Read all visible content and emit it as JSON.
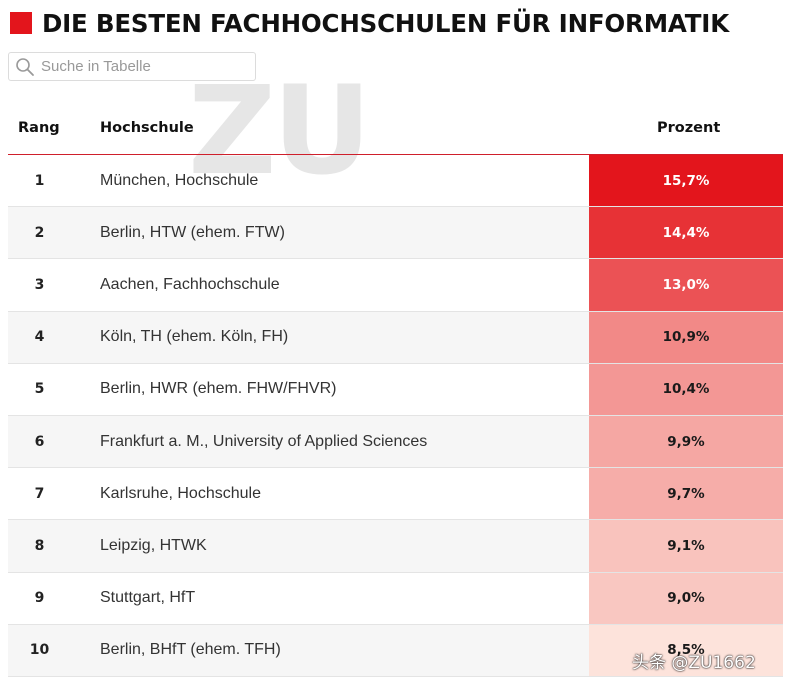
{
  "header": {
    "title": "DIE BESTEN FACHHOCHSCHULEN FÜR INFORMATIK",
    "accent_color": "#e3151c"
  },
  "search": {
    "icon": "search-icon",
    "placeholder": "Suche in Tabelle",
    "value": ""
  },
  "watermark_text": "ZU",
  "credit_text": "头条 @ZU1662",
  "chart_data": {
    "type": "table",
    "title": "DIE BESTEN FACHHOCHSCHULEN FÜR INFORMATIK",
    "columns": [
      "Rang",
      "Hochschule",
      "Prozent"
    ],
    "rows": [
      {
        "rank": "1",
        "name": "München, Hochschule",
        "percent_label": "15,7%",
        "value": 15.7
      },
      {
        "rank": "2",
        "name": "Berlin, HTW (ehem. FTW)",
        "percent_label": "14,4%",
        "value": 14.4
      },
      {
        "rank": "3",
        "name": "Aachen, Fachhochschule",
        "percent_label": "13,0%",
        "value": 13.0
      },
      {
        "rank": "4",
        "name": "Köln, TH (ehem. Köln, FH)",
        "percent_label": "10,9%",
        "value": 10.9
      },
      {
        "rank": "5",
        "name": "Berlin, HWR (ehem. FHW/FHVR)",
        "percent_label": "10,4%",
        "value": 10.4
      },
      {
        "rank": "6",
        "name": "Frankfurt a. M., University of Applied Sciences",
        "percent_label": "9,9%",
        "value": 9.9
      },
      {
        "rank": "7",
        "name": "Karlsruhe, Hochschule",
        "percent_label": "9,7%",
        "value": 9.7
      },
      {
        "rank": "8",
        "name": "Leipzig, HTWK",
        "percent_label": "9,1%",
        "value": 9.1
      },
      {
        "rank": "9",
        "name": "Stuttgart, HfT",
        "percent_label": "9,0%",
        "value": 9.0
      },
      {
        "rank": "10",
        "name": "Berlin, BHfT (ehem. TFH)",
        "percent_label": "8,5%",
        "value": 8.5
      }
    ],
    "color_scale": {
      "high": "#e3151c",
      "low": "#fde3db"
    }
  }
}
